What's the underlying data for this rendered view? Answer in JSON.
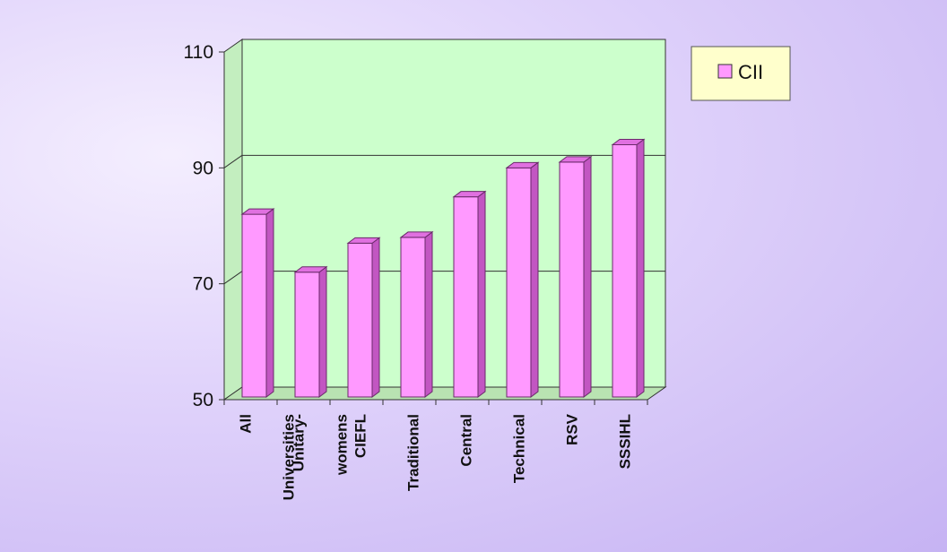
{
  "chart_data": {
    "type": "bar",
    "categories": [
      "All Universities",
      "Unitary-womens",
      "CIEFL",
      "Traditional",
      "Central",
      "Technical",
      "RSV",
      "SSSIHL"
    ],
    "category_lines": [
      [
        "All",
        "Universities"
      ],
      [
        "Unitary-",
        "womens"
      ],
      [
        "CIEFL"
      ],
      [
        "Traditional"
      ],
      [
        "Central"
      ],
      [
        "Technical"
      ],
      [
        "RSV"
      ],
      [
        "SSSIHL"
      ]
    ],
    "series": [
      {
        "name": "CII",
        "values": [
          82,
          72,
          77,
          78,
          85,
          90,
          91,
          94
        ]
      }
    ],
    "title": "",
    "xlabel": "",
    "ylabel": "",
    "ylim": [
      50,
      110
    ],
    "yticks": [
      50,
      70,
      90,
      110
    ],
    "grid": true,
    "legend": "top-right",
    "style": "3d",
    "colors": {
      "bar_front": "#ff99ff",
      "bar_side": "#c256c2",
      "bar_top": "#e070e0",
      "wall": "#ccffcc",
      "floor": "#b9e3b2",
      "legend_bg": "#ffffcc"
    }
  }
}
